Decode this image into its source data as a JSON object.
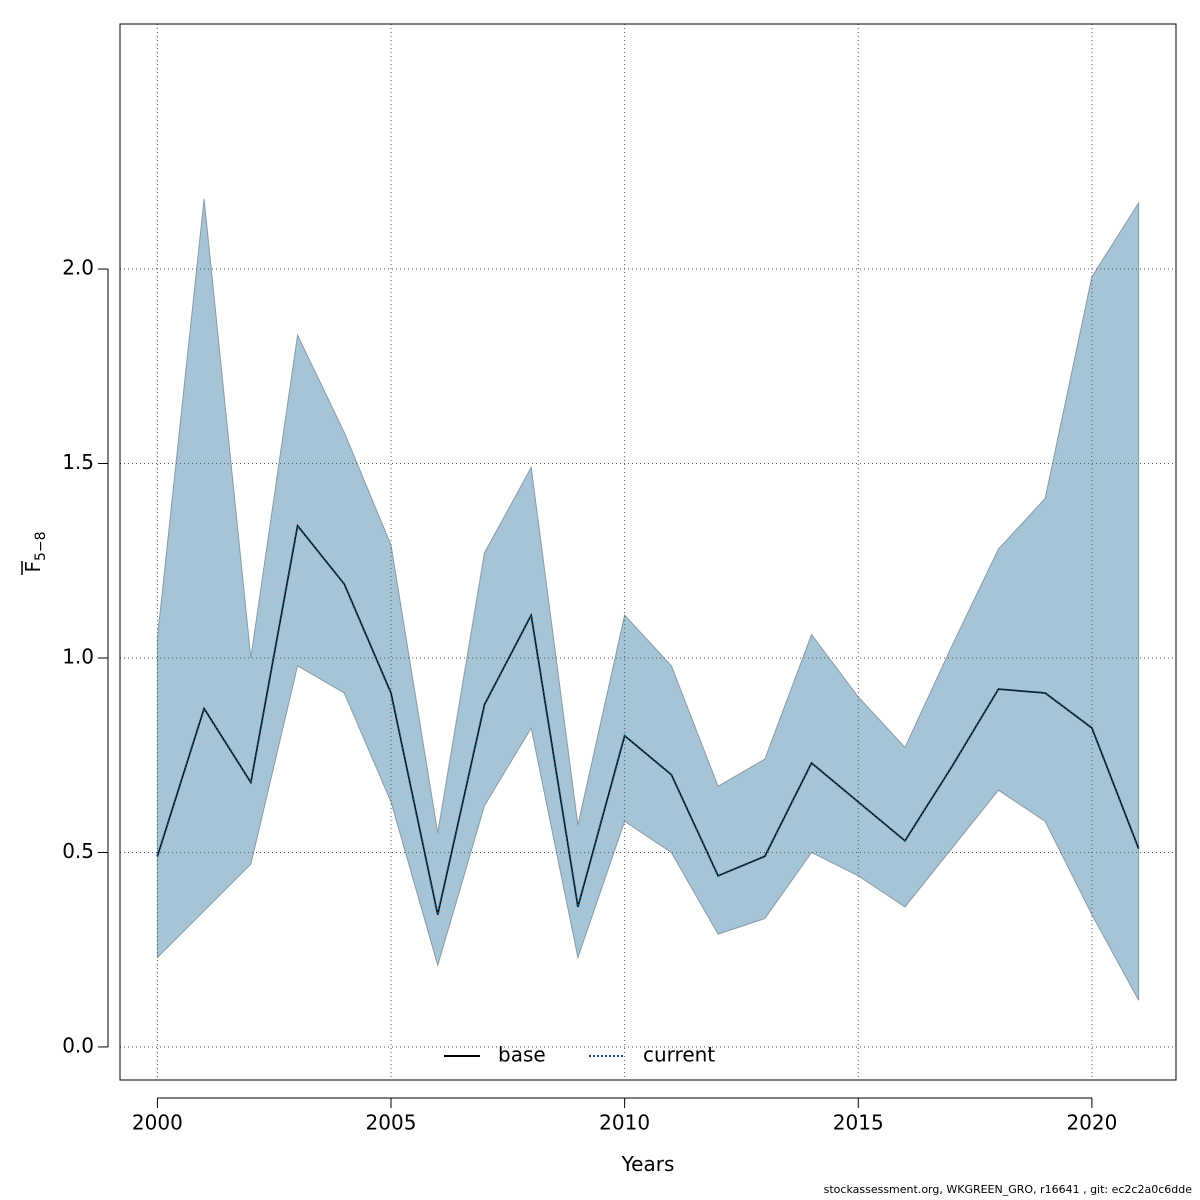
{
  "chart_data": {
    "type": "line",
    "title": "",
    "xlabel": "Years",
    "ylabel_main": "F",
    "ylabel_sub": "5−8",
    "x": [
      2000,
      2001,
      2002,
      2003,
      2004,
      2005,
      2006,
      2007,
      2008,
      2009,
      2010,
      2011,
      2012,
      2013,
      2014,
      2015,
      2016,
      2017,
      2018,
      2019,
      2020,
      2021
    ],
    "xlim": [
      1999.2,
      2021.8
    ],
    "ylim": [
      -0.085,
      2.63
    ],
    "x_ticks": [
      2000,
      2005,
      2010,
      2015,
      2020
    ],
    "x_tick_labels": [
      "2000",
      "2005",
      "2010",
      "2015",
      "2020"
    ],
    "y_ticks": [
      0.0,
      0.5,
      1.0,
      1.5,
      2.0
    ],
    "y_tick_labels": [
      "0.0",
      "0.5",
      "1.0",
      "1.5",
      "2.0"
    ],
    "grid": true,
    "legend_position": "bottom-center",
    "confidence_band": {
      "lower": [
        0.23,
        0.35,
        0.47,
        0.98,
        0.91,
        0.63,
        0.21,
        0.62,
        0.82,
        0.23,
        0.58,
        0.5,
        0.29,
        0.33,
        0.5,
        0.44,
        0.36,
        0.51,
        0.66,
        0.58,
        0.34,
        0.12
      ],
      "upper": [
        1.05,
        2.18,
        1.0,
        1.83,
        1.58,
        1.29,
        0.55,
        1.27,
        1.49,
        0.57,
        1.11,
        0.98,
        0.67,
        0.74,
        1.06,
        0.9,
        0.77,
        1.03,
        1.28,
        1.41,
        1.98,
        2.17
      ],
      "color": "#a5c4d6"
    },
    "series": [
      {
        "name": "base",
        "values": [
          0.49,
          0.87,
          0.68,
          1.34,
          1.19,
          0.91,
          0.34,
          0.88,
          1.11,
          0.36,
          0.8,
          0.7,
          0.44,
          0.49,
          0.73,
          0.63,
          0.53,
          0.72,
          0.92,
          0.91,
          0.82,
          0.51
        ],
        "color": "#000000",
        "style": "solid"
      },
      {
        "name": "current",
        "values": [
          0.49,
          0.87,
          0.68,
          1.34,
          1.19,
          0.91,
          0.34,
          0.88,
          1.11,
          0.36,
          0.8,
          0.7,
          0.44,
          0.49,
          0.73,
          0.63,
          0.53,
          0.72,
          0.92,
          0.91,
          0.82,
          0.51
        ],
        "color": "#0a4a6e",
        "style": "dotted"
      }
    ]
  },
  "footer_note": "stockassessment.org, WKGREEN_GRO, r16641 , git: ec2c2a0c6dde"
}
